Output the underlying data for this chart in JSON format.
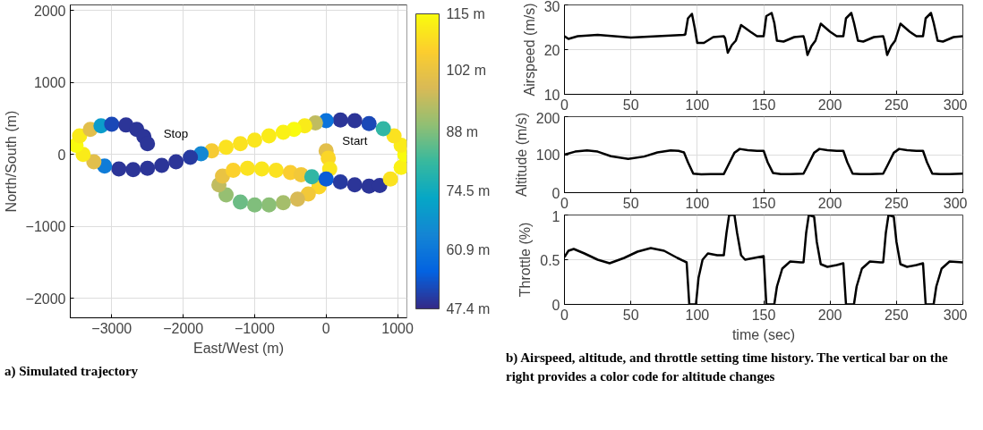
{
  "chart_data": [
    {
      "type": "scatter",
      "xlabel": "East/West (m)",
      "ylabel": "North/South (m)",
      "xlim": [
        -3580,
        1130
      ],
      "ylim": [
        -2270,
        2080
      ],
      "xticks": [
        -3000,
        -2000,
        -1000,
        0,
        1000
      ],
      "yticks": [
        -2000,
        -1000,
        0,
        1000,
        2000
      ],
      "grid": true,
      "marker": "circle",
      "clim": [
        47.4,
        115
      ],
      "cticks": [
        {
          "value": 47.4,
          "label": "47.4 m"
        },
        {
          "value": 60.9,
          "label": "60.9 m"
        },
        {
          "value": 74.5,
          "label": "74.5 m"
        },
        {
          "value": 88,
          "label": "88 m"
        },
        {
          "value": 102,
          "label": "102 m"
        },
        {
          "value": 115,
          "label": "115 m"
        }
      ],
      "series": [
        {
          "x": [
            0,
            30,
            50,
            -100,
            -250,
            -400,
            -600,
            -800,
            -1000,
            -1200,
            -1400,
            -1500,
            -1450,
            -1300,
            -1100,
            -900,
            -700,
            -500,
            -350,
            -200,
            0,
            200,
            400,
            600,
            750,
            900,
            1050,
            1100,
            1050,
            950,
            800,
            600,
            400,
            200,
            0,
            -150,
            -300,
            -450,
            -600,
            -800,
            -1000,
            -1200,
            -1400,
            -1600,
            -1750,
            -1900,
            -2100,
            -2300,
            -2500,
            -2700,
            -2900,
            -3100,
            -3250,
            -3400,
            -3500,
            -3450,
            -3300,
            -3150,
            -3000,
            -2800,
            -2650,
            -2550,
            -2500
          ],
          "values": [
            50,
            -50,
            -200,
            -450,
            -550,
            -620,
            -670,
            -700,
            -700,
            -660,
            -560,
            -420,
            -300,
            -220,
            -190,
            -200,
            -220,
            -250,
            -280,
            -310,
            -340,
            -380,
            -420,
            -440,
            -430,
            -340,
            -180,
            0,
            130,
            260,
            360,
            430,
            470,
            480,
            470,
            440,
            400,
            350,
            310,
            260,
            200,
            150,
            100,
            50,
            10,
            -40,
            -100,
            -150,
            -190,
            -210,
            -200,
            -160,
            -100,
            0,
            130,
            260,
            350,
            400,
            420,
            410,
            350,
            250,
            150
          ],
          "cvalues": [
            100,
            108,
            111,
            108,
            104,
            98,
            92,
            89,
            88,
            86,
            90,
            95,
            102,
            107,
            110,
            111,
            110,
            106,
            104,
            80,
            55,
            50,
            49,
            49,
            49,
            110,
            113,
            115,
            112,
            110,
            80,
            52,
            49,
            49,
            60,
            95,
            112,
            115,
            113,
            112,
            111,
            110,
            110,
            105,
            65,
            50,
            49,
            49,
            49,
            49,
            49,
            62,
            100,
            112,
            115,
            112,
            100,
            70,
            52,
            49,
            49,
            49,
            49
          ]
        }
      ],
      "annotations": [
        {
          "text": "Start",
          "x": 0,
          "y": 50
        },
        {
          "text": "Stop",
          "x": -2500,
          "y": 150
        },
        "a) Simulated trajectory"
      ]
    },
    {
      "type": "line",
      "ylabel": "Airspeed (m/s)",
      "xlim": [
        0,
        300
      ],
      "ylim": [
        10,
        30
      ],
      "xticks": [
        0,
        50,
        100,
        150,
        200,
        250,
        300
      ],
      "yticks": [
        10,
        20,
        30
      ],
      "grid": true,
      "series": [
        {
          "color": "#000000",
          "x": [
            0,
            3,
            10,
            25,
            50,
            70,
            90,
            91,
            93,
            96,
            98,
            100,
            105,
            112,
            120,
            121,
            123,
            126,
            129,
            133,
            140,
            145,
            150,
            152,
            156,
            158,
            160,
            165,
            173,
            180,
            181,
            183,
            186,
            189,
            193,
            200,
            205,
            210,
            212,
            216,
            218,
            221,
            225,
            233,
            240,
            241,
            243,
            246,
            249,
            253,
            260,
            265,
            270,
            272,
            276,
            278,
            281,
            285,
            293,
            300
          ],
          "values": [
            23,
            22.4,
            23,
            23.3,
            22.7,
            23,
            23.3,
            23.4,
            27,
            28,
            25,
            21.5,
            21.5,
            22.8,
            23,
            22.5,
            19.3,
            21,
            22,
            25.5,
            24,
            23,
            23,
            27.5,
            28.2,
            26,
            22,
            21.8,
            22.8,
            23,
            22,
            18.8,
            20.8,
            22,
            25.8,
            24,
            23,
            23,
            27,
            28.2,
            26,
            22,
            21.8,
            22.8,
            23,
            22,
            18.8,
            20.8,
            22,
            25.8,
            24,
            23,
            23,
            27,
            28.2,
            26,
            22,
            21.8,
            22.8,
            23
          ]
        }
      ]
    },
    {
      "type": "line",
      "ylabel": "Altitude (m/s)",
      "xlim": [
        0,
        300
      ],
      "ylim": [
        0,
        200
      ],
      "xticks": [
        0,
        50,
        100,
        150,
        200,
        250,
        300
      ],
      "yticks": [
        0,
        100,
        200
      ],
      "grid": true,
      "series": [
        {
          "color": "#000000",
          "x": [
            0,
            8,
            17,
            25,
            35,
            48,
            60,
            70,
            80,
            86,
            90,
            93,
            97,
            103,
            110,
            120,
            123,
            128,
            132,
            138,
            145,
            150,
            153,
            157,
            163,
            170,
            180,
            183,
            188,
            192,
            198,
            205,
            210,
            213,
            217,
            223,
            230,
            240,
            243,
            248,
            252,
            258,
            265,
            270,
            273,
            277,
            283,
            290,
            300
          ],
          "values": [
            100,
            108,
            111,
            108,
            96,
            89,
            95,
            106,
            111,
            110,
            106,
            80,
            50,
            48,
            49,
            49,
            70,
            105,
            115,
            112,
            110,
            110,
            80,
            52,
            49,
            49,
            50,
            70,
            105,
            115,
            112,
            110,
            110,
            80,
            50,
            49,
            49,
            50,
            70,
            105,
            115,
            112,
            110,
            110,
            80,
            50,
            49,
            49,
            50
          ]
        }
      ]
    },
    {
      "type": "line",
      "ylabel": "Throttle (%)",
      "xlabel": "time (sec)",
      "xlim": [
        0,
        300
      ],
      "ylim": [
        0,
        1
      ],
      "xticks": [
        0,
        50,
        100,
        150,
        200,
        250,
        300
      ],
      "yticks": [
        0,
        0.5,
        1
      ],
      "grid": true,
      "series": [
        {
          "color": "#000000",
          "x": [
            0,
            3,
            7,
            15,
            25,
            34,
            45,
            55,
            65,
            75,
            85,
            92,
            94,
            99,
            101,
            104,
            108,
            115,
            120,
            122,
            124,
            128,
            130,
            133,
            136,
            143,
            150,
            152,
            158,
            160,
            164,
            170,
            178,
            180,
            182,
            184,
            188,
            190,
            193,
            198,
            205,
            210,
            212,
            218,
            220,
            224,
            230,
            238,
            240,
            242,
            244,
            248,
            250,
            253,
            258,
            265,
            270,
            272,
            278,
            280,
            284,
            290,
            300
          ],
          "values": [
            0.53,
            0.6,
            0.62,
            0.57,
            0.5,
            0.46,
            0.52,
            0.59,
            0.63,
            0.6,
            0.52,
            0.47,
            0,
            0,
            0.3,
            0.5,
            0.57,
            0.55,
            0.55,
            0.8,
            1,
            1,
            0.8,
            0.55,
            0.5,
            0.52,
            0.54,
            0,
            0,
            0.2,
            0.4,
            0.48,
            0.47,
            0.47,
            0.8,
            1,
            0.98,
            0.7,
            0.45,
            0.42,
            0.44,
            0.46,
            0,
            0,
            0.2,
            0.4,
            0.48,
            0.47,
            0.47,
            0.8,
            1,
            0.98,
            0.7,
            0.45,
            0.42,
            0.44,
            0.46,
            0,
            0,
            0.2,
            0.4,
            0.48,
            0.47
          ]
        }
      ],
      "annotations": [
        "b) Airspeed, altitude, and throttle setting time history. The vertical bar on the right provides a color code for altitude changes"
      ]
    }
  ]
}
